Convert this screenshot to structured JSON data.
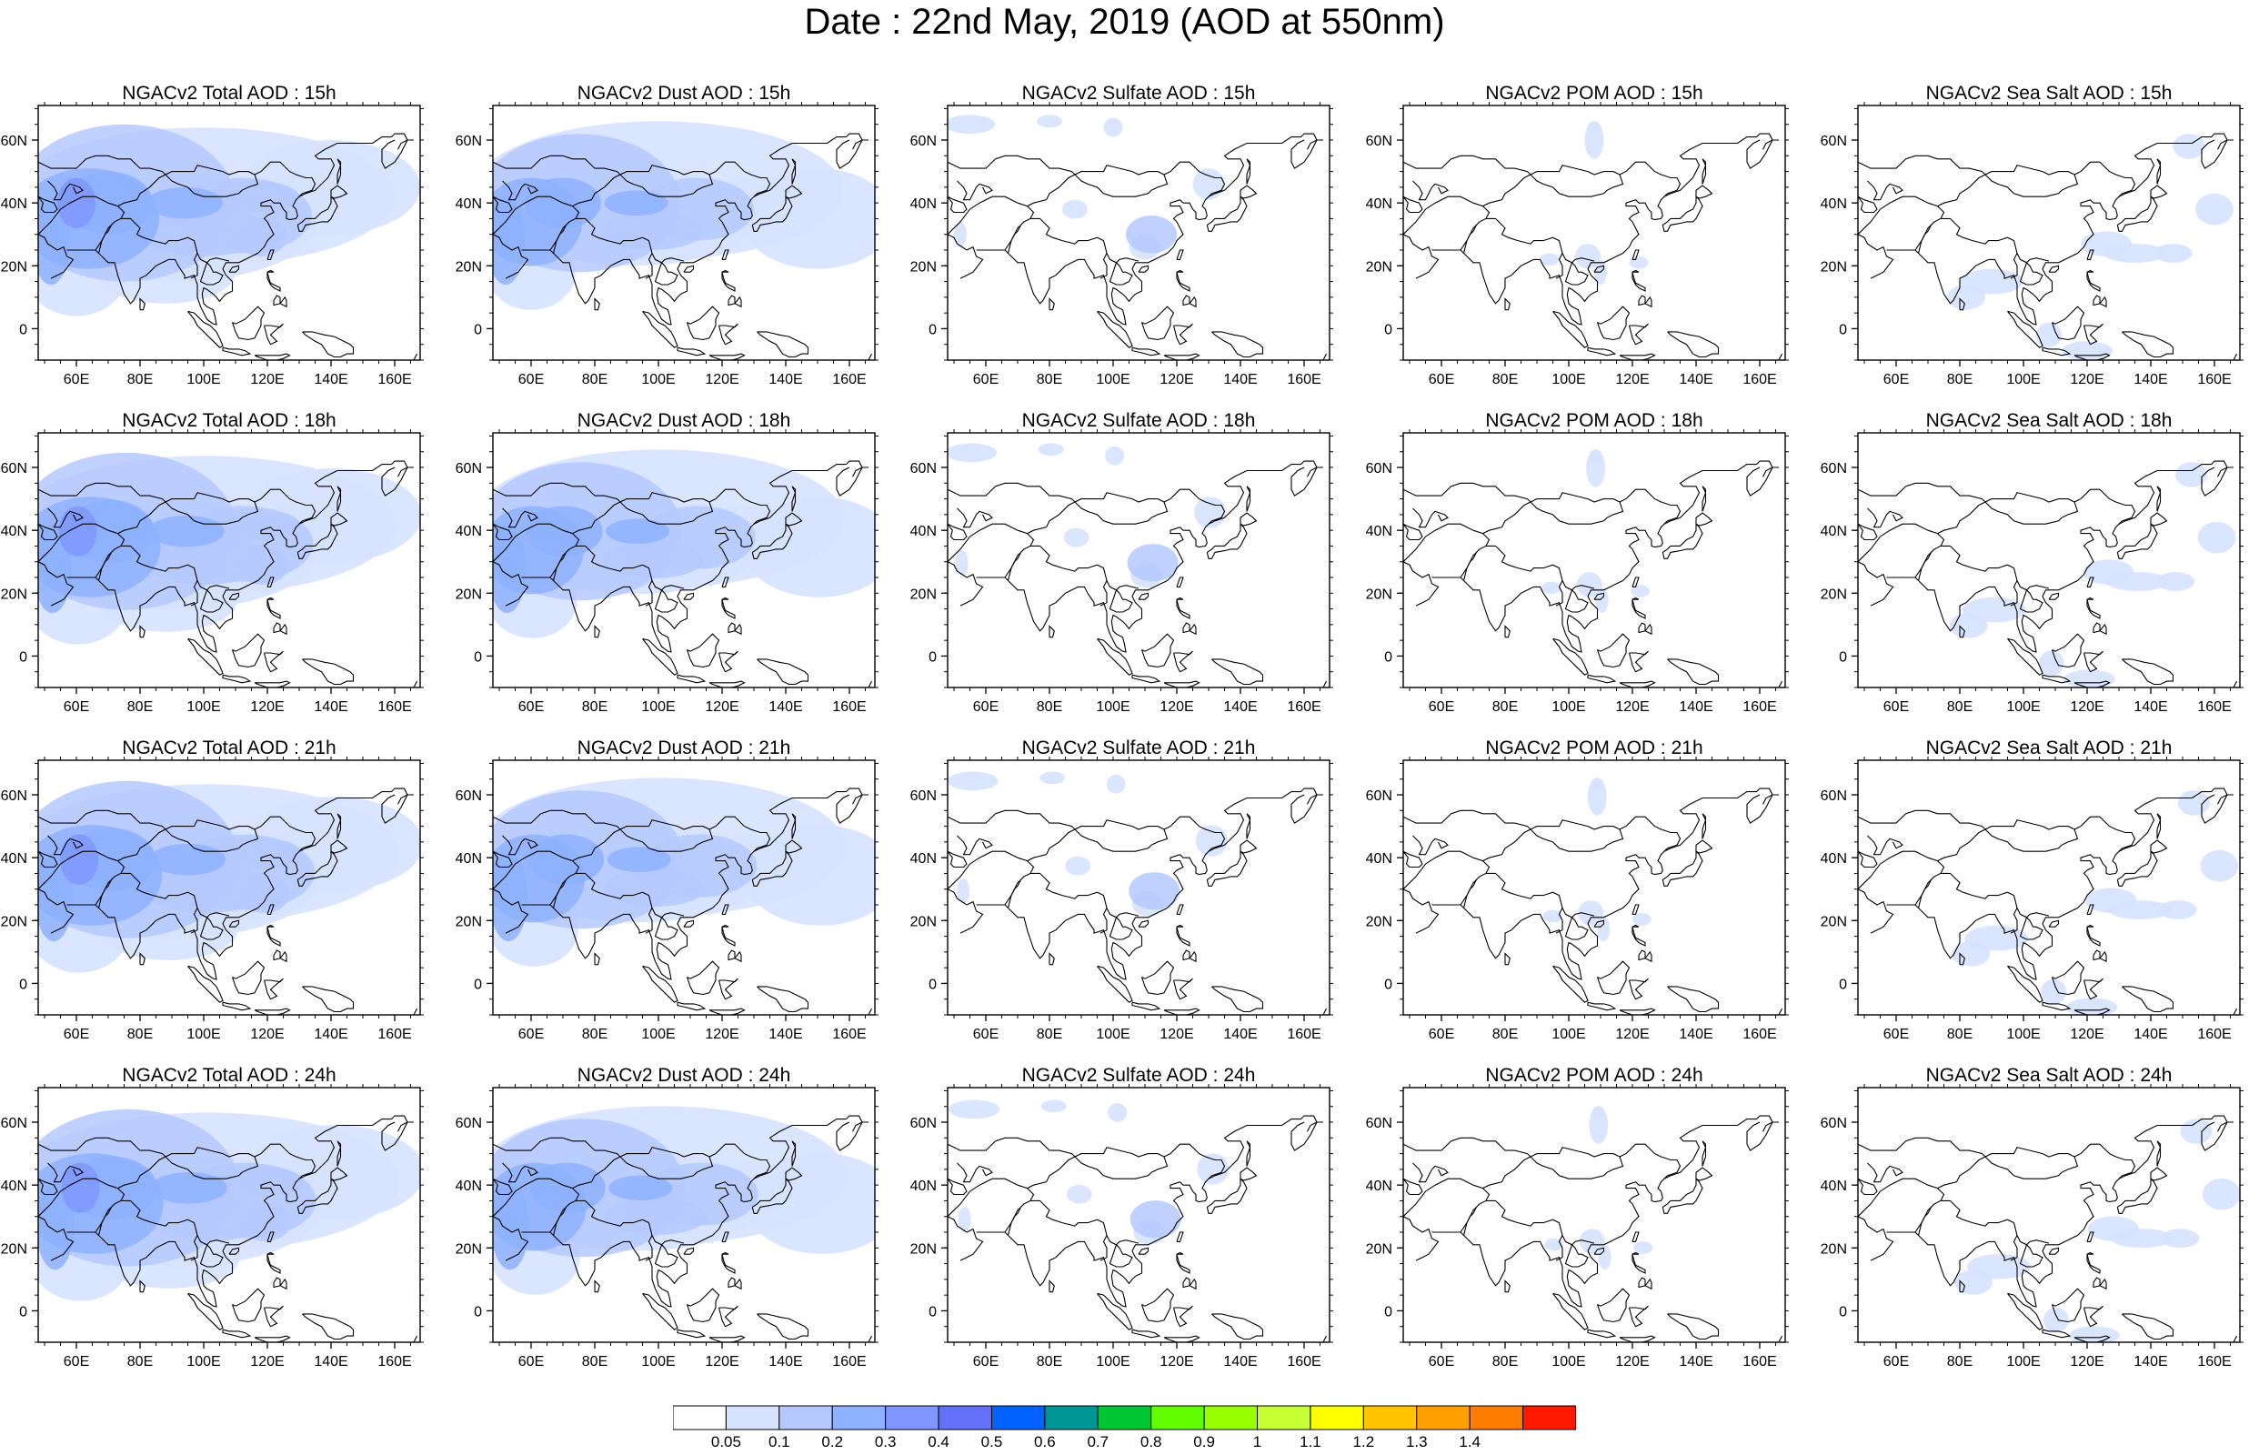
{
  "title": "Date : 22nd May, 2019 (AOD at 550nm)",
  "map_axes": {
    "lat_ticks": [
      "60N",
      "40N",
      "20N",
      "0"
    ],
    "lat_values": [
      60,
      40,
      20,
      0
    ],
    "lon_ticks": [
      "60E",
      "80E",
      "100E",
      "120E",
      "140E",
      "160E"
    ],
    "lon_values": [
      60,
      80,
      100,
      120,
      140,
      160
    ],
    "lon_range": [
      48,
      168
    ],
    "lat_range": [
      -10,
      71
    ]
  },
  "rows": [
    {
      "time": "15h",
      "titles": [
        "NGACv2 Total AOD : 15h",
        "NGACv2 Dust AOD : 15h",
        "NGACv2 Sulfate AOD : 15h",
        "NGACv2 POM AOD : 15h",
        "NGACv2 Sea Salt AOD : 15h"
      ]
    },
    {
      "time": "18h",
      "titles": [
        "NGACv2 Total AOD : 18h",
        "NGACv2 Dust AOD : 18h",
        "NGACv2 Sulfate AOD : 18h",
        "NGACv2 POM AOD : 18h",
        "NGACv2 Sea Salt AOD : 18h"
      ]
    },
    {
      "time": "21h",
      "titles": [
        "NGACv2 Total AOD : 21h",
        "NGACv2 Dust AOD : 21h",
        "NGACv2 Sulfate AOD : 21h",
        "NGACv2 POM AOD : 21h",
        "NGACv2 Sea Salt AOD : 21h"
      ]
    },
    {
      "time": "24h",
      "titles": [
        "NGACv2 Total AOD : 24h",
        "NGACv2 Dust AOD : 24h",
        "NGACv2 Sulfate AOD : 24h",
        "NGACv2 POM AOD : 24h",
        "NGACv2 Sea Salt  AOD : 24h"
      ]
    }
  ],
  "colorbar": {
    "labels": [
      "0.05",
      "0.1",
      "0.2",
      "0.3",
      "0.4",
      "0.5",
      "0.6",
      "0.7",
      "0.8",
      "0.9",
      "1",
      "1.1",
      "1.2",
      "1.3",
      "1.4"
    ],
    "colors": [
      "#ffffff",
      "#d6e2ff",
      "#b5c9ff",
      "#8eb2ff",
      "#7f96ff",
      "#6370f8",
      "#0063ff",
      "#009696",
      "#00c633",
      "#63ff00",
      "#96ff00",
      "#c6ff33",
      "#ffff00",
      "#ffc600",
      "#ffa000",
      "#ff7c00",
      "#ff1900"
    ]
  },
  "colors": {
    "level1": "#d6e2ff",
    "level2": "#b5c9ff",
    "level3": "#8eb2ff",
    "level4": "#7f96ff",
    "coastline": "#000000"
  }
}
